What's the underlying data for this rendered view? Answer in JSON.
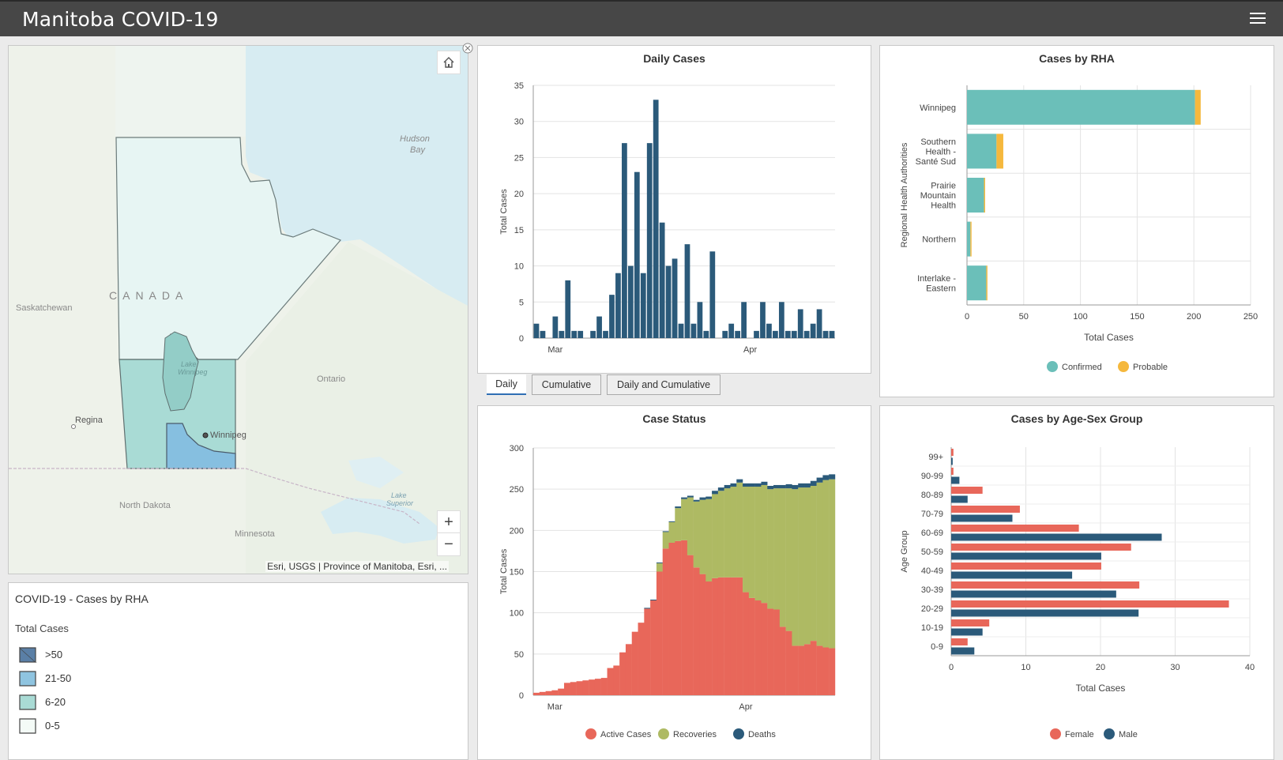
{
  "app": {
    "title": "Manitoba COVID-19"
  },
  "map": {
    "attribution": "Esri, USGS | Province of Manitoba, Esri, ...",
    "zoom_in": "+",
    "zoom_out": "−",
    "labels": {
      "hudson": "Hudson",
      "bay": "Bay",
      "canada": "CANADA",
      "saskatchewan": "Saskatchewan",
      "ontario": "Ontario",
      "lake_winnipeg_1": "Lake",
      "lake_winnipeg_2": "Winnipeg",
      "winnipeg": "Winnipeg",
      "regina": "Regina",
      "north_dakota": "North Dakota",
      "minnesota": "Minnesota",
      "lake_superior_1": "Lake",
      "lake_superior_2": "Superior"
    },
    "icons": {
      "home": "home-icon",
      "expand": "expand-icon",
      "menu": "hamburger-menu-icon"
    }
  },
  "legend": {
    "title": "COVID-19 - Cases by RHA",
    "subtitle": "Total Cases",
    "items": [
      {
        "label": ">50",
        "color": "#5a7fa6"
      },
      {
        "label": "21-50",
        "color": "#8fc4e0"
      },
      {
        "label": "6-20",
        "color": "#a9dbd5"
      },
      {
        "label": "0-5",
        "color": "#f4fbf7"
      }
    ]
  },
  "tabs": [
    {
      "label": "Daily",
      "active": true
    },
    {
      "label": "Cumulative",
      "active": false
    },
    {
      "label": "Daily and Cumulative",
      "active": false
    }
  ],
  "colors": {
    "navy": "#2b5a7a",
    "teal": "#6bbfb9",
    "amber": "#f5b83d",
    "salmon": "#e8675a",
    "olive": "#aeba63"
  },
  "chart_data": [
    {
      "id": "daily",
      "type": "bar",
      "title": "Daily Cases",
      "ylabel": "Total Cases",
      "ylim": [
        0,
        35
      ],
      "yticks": [
        0,
        5,
        10,
        15,
        20,
        25,
        30,
        35
      ],
      "xtick_labels": [
        {
          "label": "Mar",
          "index": 3
        },
        {
          "label": "Apr",
          "index": 34
        }
      ],
      "values": [
        2,
        1,
        0,
        3,
        1,
        8,
        1,
        1,
        0,
        1,
        3,
        1,
        6,
        9,
        27,
        10,
        23,
        9,
        27,
        33,
        16,
        10,
        11,
        2,
        13,
        2,
        5,
        1,
        12,
        0,
        1,
        2,
        1,
        5,
        0,
        1,
        5,
        2,
        1,
        5,
        1,
        1,
        4,
        1,
        2,
        4,
        1,
        1
      ]
    },
    {
      "id": "rha",
      "type": "bar",
      "orientation": "horizontal",
      "title": "Cases by RHA",
      "xlabel": "Total Cases",
      "ylabel": "Regional Health Authorities",
      "xlim": [
        0,
        250
      ],
      "xticks": [
        0,
        50,
        100,
        150,
        200,
        250
      ],
      "categories": [
        [
          "Winnipeg"
        ],
        [
          "Southern",
          "Health -",
          "Santé Sud"
        ],
        [
          "Prairie",
          "Mountain",
          "Health"
        ],
        [
          "Northern"
        ],
        [
          "Interlake -",
          "Eastern"
        ]
      ],
      "series": [
        {
          "name": "Confirmed",
          "values": [
            201,
            26,
            15,
            3,
            17
          ]
        },
        {
          "name": "Probable",
          "values": [
            5,
            6,
            1,
            1,
            1
          ]
        }
      ],
      "legend_position": "bottom"
    },
    {
      "id": "status",
      "type": "bar",
      "stacked": true,
      "title": "Case Status",
      "ylabel": "Total Cases",
      "ylim": [
        0,
        300
      ],
      "yticks": [
        0,
        50,
        100,
        150,
        200,
        250,
        300
      ],
      "xtick_labels": [
        {
          "label": "Mar",
          "index": 3
        },
        {
          "label": "Apr",
          "index": 34
        }
      ],
      "series": [
        {
          "name": "Active Cases",
          "values": [
            3,
            4,
            5,
            6,
            8,
            15,
            16,
            17,
            18,
            19,
            20,
            21,
            33,
            36,
            52,
            62,
            77,
            88,
            105,
            115,
            150,
            178,
            185,
            187,
            188,
            170,
            155,
            147,
            138,
            142,
            143,
            143,
            143,
            143,
            125,
            118,
            115,
            112,
            105,
            104,
            83,
            78,
            60,
            60,
            62,
            66,
            60,
            58,
            57
          ]
        },
        {
          "name": "Recoveries",
          "values": [
            0,
            0,
            0,
            0,
            0,
            0,
            0,
            0,
            0,
            0,
            0,
            0,
            0,
            0,
            0,
            0,
            0,
            0,
            0,
            0,
            10,
            20,
            25,
            40,
            50,
            70,
            80,
            90,
            100,
            102,
            105,
            108,
            110,
            115,
            128,
            135,
            138,
            143,
            145,
            147,
            168,
            173,
            190,
            192,
            190,
            188,
            198,
            203,
            205
          ]
        },
        {
          "name": "Deaths",
          "values": [
            0,
            0,
            0,
            0,
            0,
            0,
            0,
            0,
            0,
            0,
            0,
            0,
            0,
            0,
            0,
            0,
            0,
            0,
            1,
            1,
            1,
            1,
            1,
            2,
            2,
            2,
            2,
            3,
            3,
            4,
            4,
            4,
            4,
            4,
            4,
            4,
            4,
            4,
            4,
            4,
            4,
            5,
            5,
            5,
            5,
            6,
            6,
            6,
            6
          ]
        }
      ],
      "legend_position": "bottom"
    },
    {
      "id": "age",
      "type": "bar",
      "orientation": "horizontal",
      "title": "Cases by Age-Sex Group",
      "xlabel": "Total Cases",
      "ylabel": "Age Group",
      "xlim": [
        0,
        40
      ],
      "xticks": [
        0,
        10,
        20,
        30,
        40
      ],
      "categories": [
        "99+",
        "90-99",
        "80-89",
        "70-79",
        "60-69",
        "50-59",
        "40-49",
        "30-39",
        "20-29",
        "10-19",
        "0-9"
      ],
      "series": [
        {
          "name": "Female",
          "values": [
            0.3,
            0.3,
            4.2,
            9.2,
            17.1,
            24.1,
            20.1,
            25.2,
            37.2,
            5.1,
            2.2
          ]
        },
        {
          "name": "Male",
          "values": [
            0.2,
            1.1,
            2.2,
            8.2,
            28.2,
            20.1,
            16.2,
            22.1,
            25.1,
            4.2,
            3.1
          ]
        }
      ],
      "legend_position": "bottom"
    }
  ]
}
